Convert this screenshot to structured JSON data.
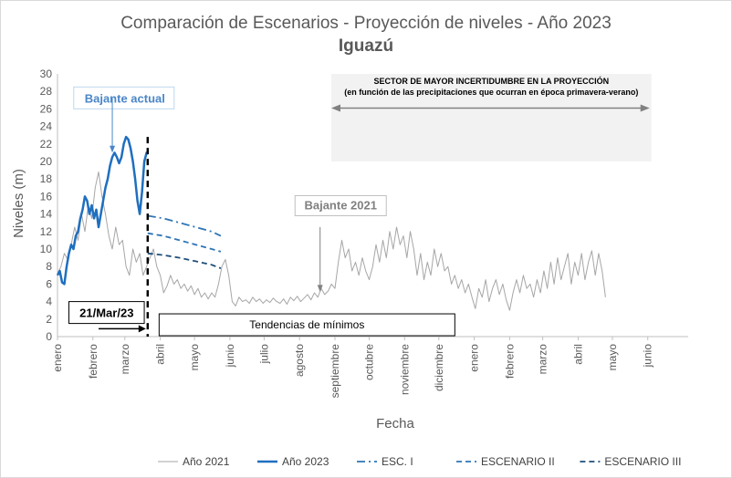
{
  "chart_data": {
    "type": "line",
    "title": "Comparación de Escenarios - Proyección de niveles - Año 2023",
    "subtitle": "Iguazú",
    "xlabel": "Fecha",
    "ylabel": "Niveles (m)",
    "ylim": [
      0,
      30
    ],
    "yticks": [
      0,
      2,
      4,
      6,
      8,
      10,
      12,
      14,
      16,
      18,
      20,
      22,
      24,
      26,
      28,
      30
    ],
    "xlim": [
      "2023-01-01",
      "2024-06-30"
    ],
    "x_tick_labels": [
      "enero",
      "febrero",
      "marzo",
      "abril",
      "mayo",
      "junio",
      "julio",
      "agosto",
      "septiembre",
      "octubre",
      "noviembre",
      "diciembre",
      "enero",
      "febrero",
      "marzo",
      "abril",
      "mayo",
      "junio"
    ],
    "grid": false,
    "legend_position": "bottom",
    "series": [
      {
        "name": "Año 2021",
        "color": "#a6a6a6",
        "style": "solid",
        "points": [
          [
            "2023-01-01",
            7.2
          ],
          [
            "2023-01-04",
            8.0
          ],
          [
            "2023-01-07",
            9.5
          ],
          [
            "2023-01-10",
            8.8
          ],
          [
            "2023-01-13",
            10.5
          ],
          [
            "2023-01-16",
            12.5
          ],
          [
            "2023-01-19",
            11.0
          ],
          [
            "2023-01-22",
            14.0
          ],
          [
            "2023-01-25",
            12.0
          ],
          [
            "2023-01-28",
            15.0
          ],
          [
            "2023-01-31",
            13.5
          ],
          [
            "2023-02-03",
            17.0
          ],
          [
            "2023-02-06",
            18.8
          ],
          [
            "2023-02-09",
            16.0
          ],
          [
            "2023-02-12",
            14.0
          ],
          [
            "2023-02-15",
            11.5
          ],
          [
            "2023-02-18",
            10.0
          ],
          [
            "2023-02-21",
            12.5
          ],
          [
            "2023-02-24",
            10.5
          ],
          [
            "2023-02-27",
            11.0
          ],
          [
            "2023-03-02",
            8.0
          ],
          [
            "2023-03-05",
            7.0
          ],
          [
            "2023-03-08",
            10.0
          ],
          [
            "2023-03-11",
            8.5
          ],
          [
            "2023-03-14",
            9.5
          ],
          [
            "2023-03-17",
            7.0
          ],
          [
            "2023-03-20",
            8.0
          ],
          [
            "2023-03-23",
            9.0
          ],
          [
            "2023-03-26",
            10.0
          ],
          [
            "2023-03-29",
            8.0
          ],
          [
            "2023-04-01",
            7.0
          ],
          [
            "2023-04-04",
            5.0
          ],
          [
            "2023-04-07",
            5.8
          ],
          [
            "2023-04-10",
            7.0
          ],
          [
            "2023-04-13",
            6.0
          ],
          [
            "2023-04-16",
            6.5
          ],
          [
            "2023-04-19",
            5.5
          ],
          [
            "2023-04-22",
            6.0
          ],
          [
            "2023-04-25",
            5.2
          ],
          [
            "2023-04-28",
            5.8
          ],
          [
            "2023-05-01",
            4.8
          ],
          [
            "2023-05-04",
            5.5
          ],
          [
            "2023-05-07",
            4.5
          ],
          [
            "2023-05-10",
            5.0
          ],
          [
            "2023-05-13",
            4.3
          ],
          [
            "2023-05-16",
            5.0
          ],
          [
            "2023-05-19",
            4.5
          ],
          [
            "2023-05-22",
            6.0
          ],
          [
            "2023-05-25",
            8.0
          ],
          [
            "2023-05-28",
            8.8
          ],
          [
            "2023-05-31",
            7.0
          ],
          [
            "2023-06-03",
            4.0
          ],
          [
            "2023-06-06",
            3.5
          ],
          [
            "2023-06-09",
            4.5
          ],
          [
            "2023-06-12",
            4.0
          ],
          [
            "2023-06-15",
            4.2
          ],
          [
            "2023-06-18",
            3.8
          ],
          [
            "2023-06-21",
            4.5
          ],
          [
            "2023-06-24",
            4.0
          ],
          [
            "2023-06-27",
            4.3
          ],
          [
            "2023-06-30",
            3.8
          ],
          [
            "2023-07-03",
            4.2
          ],
          [
            "2023-07-06",
            3.9
          ],
          [
            "2023-07-09",
            4.4
          ],
          [
            "2023-07-12",
            4.0
          ],
          [
            "2023-07-15",
            3.8
          ],
          [
            "2023-07-18",
            4.3
          ],
          [
            "2023-07-21",
            3.7
          ],
          [
            "2023-07-24",
            4.5
          ],
          [
            "2023-07-27",
            4.1
          ],
          [
            "2023-07-30",
            4.6
          ],
          [
            "2023-08-02",
            4.0
          ],
          [
            "2023-08-05",
            4.4
          ],
          [
            "2023-08-08",
            4.8
          ],
          [
            "2023-08-11",
            4.2
          ],
          [
            "2023-08-14",
            5.0
          ],
          [
            "2023-08-17",
            4.5
          ],
          [
            "2023-08-20",
            5.5
          ],
          [
            "2023-08-23",
            4.8
          ],
          [
            "2023-08-26",
            5.2
          ],
          [
            "2023-08-29",
            6.0
          ],
          [
            "2023-09-01",
            5.5
          ],
          [
            "2023-09-04",
            8.5
          ],
          [
            "2023-09-07",
            11.0
          ],
          [
            "2023-09-10",
            9.0
          ],
          [
            "2023-09-13",
            10.0
          ],
          [
            "2023-09-16",
            7.5
          ],
          [
            "2023-09-19",
            8.5
          ],
          [
            "2023-09-22",
            7.0
          ],
          [
            "2023-09-25",
            9.0
          ],
          [
            "2023-09-28",
            7.5
          ],
          [
            "2023-10-01",
            6.5
          ],
          [
            "2023-10-04",
            8.0
          ],
          [
            "2023-10-07",
            10.5
          ],
          [
            "2023-10-10",
            8.5
          ],
          [
            "2023-10-13",
            11.0
          ],
          [
            "2023-10-16",
            9.0
          ],
          [
            "2023-10-19",
            12.0
          ],
          [
            "2023-10-22",
            10.0
          ],
          [
            "2023-10-25",
            12.5
          ],
          [
            "2023-10-28",
            10.5
          ],
          [
            "2023-10-31",
            11.5
          ],
          [
            "2023-11-03",
            9.0
          ],
          [
            "2023-11-06",
            12.0
          ],
          [
            "2023-11-09",
            10.0
          ],
          [
            "2023-11-12",
            7.0
          ],
          [
            "2023-11-15",
            9.5
          ],
          [
            "2023-11-18",
            6.5
          ],
          [
            "2023-11-21",
            8.5
          ],
          [
            "2023-11-24",
            7.0
          ],
          [
            "2023-11-27",
            10.0
          ],
          [
            "2023-11-30",
            8.0
          ],
          [
            "2023-12-03",
            9.5
          ],
          [
            "2023-12-06",
            7.5
          ],
          [
            "2023-12-09",
            8.0
          ],
          [
            "2023-12-12",
            6.0
          ],
          [
            "2023-12-15",
            7.0
          ],
          [
            "2023-12-18",
            5.5
          ],
          [
            "2023-12-21",
            6.5
          ],
          [
            "2023-12-24",
            5.0
          ],
          [
            "2023-12-27",
            6.0
          ],
          [
            "2023-12-30",
            4.5
          ],
          [
            "2024-01-02",
            3.2
          ],
          [
            "2024-01-05",
            5.5
          ],
          [
            "2024-01-08",
            4.5
          ],
          [
            "2024-01-11",
            6.5
          ],
          [
            "2024-01-14",
            4.0
          ],
          [
            "2024-01-17",
            5.5
          ],
          [
            "2024-01-20",
            6.5
          ],
          [
            "2024-01-23",
            4.8
          ],
          [
            "2024-01-26",
            6.0
          ],
          [
            "2024-01-29",
            4.2
          ],
          [
            "2024-02-01",
            3.0
          ],
          [
            "2024-02-04",
            5.0
          ],
          [
            "2024-02-07",
            6.5
          ],
          [
            "2024-02-10",
            5.0
          ],
          [
            "2024-02-13",
            7.0
          ],
          [
            "2024-02-16",
            5.5
          ],
          [
            "2024-02-19",
            6.0
          ],
          [
            "2024-02-22",
            4.5
          ],
          [
            "2024-02-25",
            6.5
          ],
          [
            "2024-02-28",
            5.0
          ],
          [
            "2024-03-02",
            7.5
          ],
          [
            "2024-03-05",
            5.5
          ],
          [
            "2024-03-08",
            8.5
          ],
          [
            "2024-03-11",
            6.0
          ],
          [
            "2024-03-14",
            9.0
          ],
          [
            "2024-03-17",
            6.5
          ],
          [
            "2024-03-20",
            8.0
          ],
          [
            "2024-03-23",
            9.5
          ],
          [
            "2024-03-26",
            6.0
          ],
          [
            "2024-03-29",
            8.5
          ],
          [
            "2024-04-01",
            7.0
          ],
          [
            "2024-04-04",
            9.5
          ],
          [
            "2024-04-07",
            6.5
          ],
          [
            "2024-04-10",
            8.5
          ],
          [
            "2024-04-13",
            9.8
          ],
          [
            "2024-04-16",
            7.0
          ],
          [
            "2024-04-19",
            9.5
          ],
          [
            "2024-04-22",
            7.5
          ],
          [
            "2024-04-25",
            4.5
          ]
        ]
      },
      {
        "name": "Año 2023",
        "color": "#1f6fbf",
        "style": "solid",
        "points": [
          [
            "2023-01-01",
            7.0
          ],
          [
            "2023-01-03",
            7.5
          ],
          [
            "2023-01-05",
            6.2
          ],
          [
            "2023-01-07",
            6.0
          ],
          [
            "2023-01-09",
            8.0
          ],
          [
            "2023-01-11",
            9.5
          ],
          [
            "2023-01-13",
            10.5
          ],
          [
            "2023-01-15",
            10.0
          ],
          [
            "2023-01-17",
            11.5
          ],
          [
            "2023-01-19",
            12.0
          ],
          [
            "2023-01-21",
            13.5
          ],
          [
            "2023-01-23",
            14.5
          ],
          [
            "2023-01-25",
            16.0
          ],
          [
            "2023-01-27",
            15.5
          ],
          [
            "2023-01-29",
            14.0
          ],
          [
            "2023-01-31",
            15.0
          ],
          [
            "2023-02-02",
            13.5
          ],
          [
            "2023-02-04",
            14.5
          ],
          [
            "2023-02-06",
            12.5
          ],
          [
            "2023-02-08",
            14.0
          ],
          [
            "2023-02-10",
            15.5
          ],
          [
            "2023-02-12",
            17.0
          ],
          [
            "2023-02-14",
            18.0
          ],
          [
            "2023-02-16",
            19.5
          ],
          [
            "2023-02-18",
            20.5
          ],
          [
            "2023-02-20",
            21.0
          ],
          [
            "2023-02-22",
            20.5
          ],
          [
            "2023-02-24",
            19.8
          ],
          [
            "2023-02-26",
            20.5
          ],
          [
            "2023-02-28",
            22.0
          ],
          [
            "2023-03-02",
            22.8
          ],
          [
            "2023-03-04",
            22.5
          ],
          [
            "2023-03-06",
            21.5
          ],
          [
            "2023-03-08",
            20.0
          ],
          [
            "2023-03-10",
            18.0
          ],
          [
            "2023-03-12",
            15.5
          ],
          [
            "2023-03-14",
            14.0
          ],
          [
            "2023-03-16",
            16.5
          ],
          [
            "2023-03-18",
            20.0
          ],
          [
            "2023-03-20",
            21.0
          ],
          [
            "2023-03-21",
            20.8
          ]
        ]
      },
      {
        "name": "ESC. I",
        "color": "#2e75b6",
        "style": "dashdot",
        "points": [
          [
            "2023-03-21",
            13.8
          ],
          [
            "2023-04-04",
            13.5
          ],
          [
            "2023-04-18",
            13.0
          ],
          [
            "2023-05-02",
            12.5
          ],
          [
            "2023-05-16",
            12.0
          ],
          [
            "2023-05-24",
            11.5
          ]
        ]
      },
      {
        "name": "ESCENARIO II",
        "color": "#2e75b6",
        "style": "dashed",
        "points": [
          [
            "2023-03-21",
            11.8
          ],
          [
            "2023-04-04",
            11.5
          ],
          [
            "2023-04-18",
            11.0
          ],
          [
            "2023-05-02",
            10.5
          ],
          [
            "2023-05-16",
            10.0
          ],
          [
            "2023-05-24",
            9.7
          ]
        ]
      },
      {
        "name": "ESCENARIO III",
        "color": "#1f4e79",
        "style": "dashed",
        "points": [
          [
            "2023-03-21",
            9.5
          ],
          [
            "2023-04-04",
            9.3
          ],
          [
            "2023-04-18",
            9.0
          ],
          [
            "2023-05-02",
            8.6
          ],
          [
            "2023-05-16",
            8.2
          ],
          [
            "2023-05-24",
            7.8
          ]
        ]
      }
    ],
    "annotations": {
      "current_label": "Bajante actual",
      "current_label_color": "#4a86c8",
      "bajante_2021_label": "Bajante 2021",
      "date_label": "21/Mar/23",
      "cutoff_date": "2023-03-21",
      "tendencias_label": "Tendencias de mínimos",
      "uncertainty_title": "SECTOR DE MAYOR INCERTIDUMBRE EN LA PROYECCIÓN",
      "uncertainty_subtitle": "(en función de las precipitaciones que ocurran  en época primavera-verano)",
      "uncertainty_range": [
        "2023-09-01",
        "2024-06-01"
      ]
    }
  }
}
